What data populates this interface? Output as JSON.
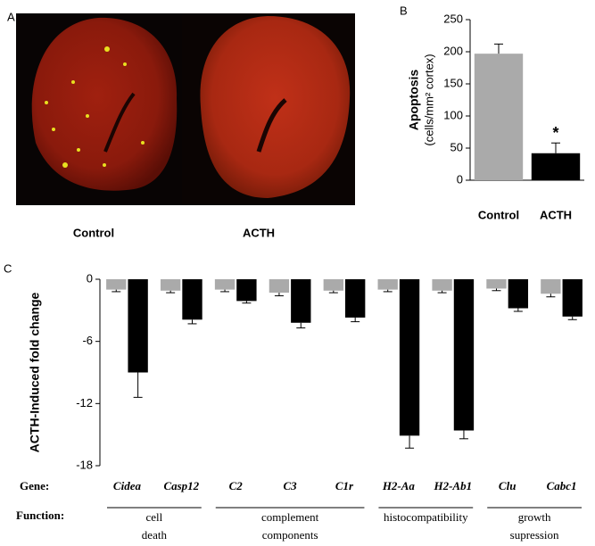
{
  "panel_labels": [
    "A",
    "B",
    "C"
  ],
  "panel_a": {
    "captions": [
      "Control",
      "ACTH"
    ]
  },
  "chart_data": [
    {
      "type": "bar",
      "y_label": "Apoptosis",
      "y_label_2": "(cells/mm² cortex)",
      "categories": [
        "Control",
        "ACTH"
      ],
      "values": [
        197,
        42
      ],
      "errors": [
        15,
        16
      ],
      "colors": [
        "#aaaaaa",
        "#000000"
      ],
      "value_labels": [
        "",
        "*"
      ],
      "ylim": [
        0,
        250
      ],
      "yticks": [
        0,
        50,
        100,
        150,
        200,
        250
      ]
    },
    {
      "type": "grouped-bar",
      "y_label": "ACTH-Induced fold change",
      "row_label": "Gene:",
      "group_row_label": "Function:",
      "categories": [
        "Cidea",
        "Casp12",
        "C2",
        "C3",
        "C1r",
        "H2-Aa",
        "H2-Ab1",
        "Clu",
        "Cabc1"
      ],
      "series": [
        {
          "color": "#aaaaaa",
          "values": [
            -1.0,
            -1.1,
            -1.0,
            -1.3,
            -1.1,
            -1.0,
            -1.1,
            -0.9,
            -1.4
          ],
          "errors": [
            0.2,
            0.2,
            0.2,
            0.3,
            0.2,
            0.2,
            0.2,
            0.2,
            0.3
          ]
        },
        {
          "color": "#000000",
          "values": [
            -9.0,
            -3.9,
            -2.1,
            -4.2,
            -3.7,
            -15.1,
            -14.6,
            -2.8,
            -3.6
          ],
          "errors": [
            2.4,
            0.4,
            0.2,
            0.5,
            0.4,
            1.2,
            0.8,
            0.3,
            0.3
          ]
        }
      ],
      "groups": [
        {
          "label": [
            "cell",
            "death"
          ],
          "members": [
            "Cidea",
            "Casp12"
          ]
        },
        {
          "label": [
            "complement",
            "components"
          ],
          "members": [
            "C2",
            "C3",
            "C1r"
          ]
        },
        {
          "label": [
            "histocompatibility"
          ],
          "members": [
            "H2-Aa",
            "H2-Ab1"
          ]
        },
        {
          "label": [
            "growth",
            "supression"
          ],
          "members": [
            "Clu",
            "Cabc1"
          ]
        }
      ],
      "ylim": [
        -18,
        0
      ],
      "yticks": [
        0,
        -6,
        -12,
        -18
      ]
    }
  ]
}
